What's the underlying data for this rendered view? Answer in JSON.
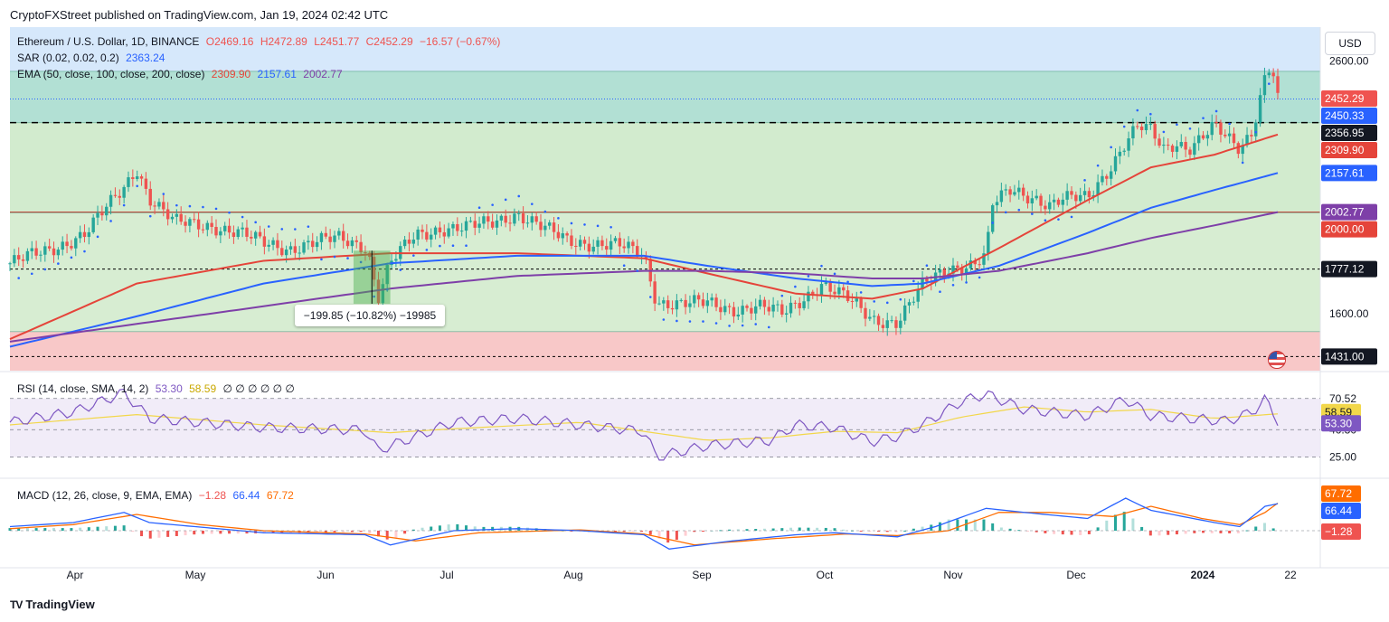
{
  "header": {
    "publisher": "CryptoFXStreet published on TradingView.com, Jan 19, 2024 02:42 UTC"
  },
  "legend": {
    "symbol": "Ethereum / U.S. Dollar, 1D, BINANCE",
    "o": "O2469.16",
    "h": "H2472.89",
    "l": "L2451.77",
    "c": "C2452.29",
    "change": "−16.57 (−0.67%)",
    "sar_label": "SAR (0.02, 0.02, 0.2)",
    "sar_value": "2363.24",
    "ema_label": "EMA (50, close, 100, close, 200, close)",
    "ema50": "2309.90",
    "ema100": "2157.61",
    "ema200": "2002.77",
    "rsi_label": "RSI (14, close, SMA, 14, 2)",
    "rsi_value": "53.30",
    "rsi_sma": "58.59",
    "rsi_extras": "∅ ∅ ∅ ∅ ∅ ∅",
    "macd_label": "MACD (12, 26, close, 9, EMA, EMA)",
    "macd_hist": "−1.28",
    "macd_line": "66.44",
    "macd_signal": "67.72"
  },
  "currency": "USD",
  "measure_label": "−199.85 (−10.82%) −19985",
  "branding": "TradingView",
  "colors": {
    "up": "#26a69a",
    "down": "#ef5350",
    "ema50": "#e5443a",
    "ema100": "#2962ff",
    "ema200": "#7e3fa8",
    "sar": "#2962ff",
    "rsi": "#7e57c2",
    "rsi_sma": "#f2d74a",
    "macd": "#2962ff",
    "signal": "#ff6d00"
  },
  "chart_data": {
    "type": "candlestick",
    "title": "Ethereum / U.S. Dollar, 1D, BINANCE",
    "price_axis": {
      "ticks": [
        1600.0,
        2000.0,
        2600.0
      ],
      "range": [
        1375,
        2735
      ]
    },
    "time_axis": [
      "Apr",
      "May",
      "Jun",
      "Jul",
      "Aug",
      "Sep",
      "Oct",
      "Nov",
      "Dec",
      "2024",
      "22"
    ],
    "zones": [
      {
        "from": 2356.95,
        "to": 2560,
        "color": "#b2e0d4"
      },
      {
        "from": 2000.0,
        "to": 2356.95,
        "color": "#d2ebce"
      },
      {
        "from": 1530,
        "to": 2000.0,
        "color": "#d7edd2"
      },
      {
        "from": 1375,
        "to": 1530,
        "color": "#f8c8c8"
      }
    ],
    "horizontal_levels": [
      2450.33,
      2356.95,
      2002.77,
      2000.0,
      1777.12,
      1431.0
    ],
    "price_labels": [
      {
        "value": 2452.29,
        "text": "2452.29",
        "bg": "#ef5350"
      },
      {
        "value": 2450.33,
        "text": "2450.33",
        "bg": "#2962ff"
      },
      {
        "value": 2356.95,
        "text": "2356.95",
        "bg": "#131722"
      },
      {
        "value": 2309.9,
        "text": "2309.90",
        "bg": "#e5443a"
      },
      {
        "value": 2157.61,
        "text": "2157.61",
        "bg": "#2962ff"
      },
      {
        "value": 2002.77,
        "text": "2002.77",
        "bg": "#7e3fa8"
      },
      {
        "value": 2000.0,
        "text": "2000.00",
        "bg": "#e5443a"
      },
      {
        "value": 1777.12,
        "text": "1777.12",
        "bg": "#131722"
      },
      {
        "value": 1431.0,
        "text": "1431.00",
        "bg": "#131722"
      }
    ],
    "ema_series": [
      {
        "name": "EMA 50",
        "points": [
          [
            0,
            1500
          ],
          [
            0.1,
            1720
          ],
          [
            0.2,
            1810
          ],
          [
            0.3,
            1840
          ],
          [
            0.4,
            1840
          ],
          [
            0.5,
            1820
          ],
          [
            0.55,
            1760
          ],
          [
            0.62,
            1680
          ],
          [
            0.68,
            1660
          ],
          [
            0.72,
            1700
          ],
          [
            0.78,
            1860
          ],
          [
            0.85,
            2050
          ],
          [
            0.9,
            2180
          ],
          [
            0.95,
            2230
          ],
          [
            1,
            2309.9
          ]
        ]
      },
      {
        "name": "EMA 100",
        "points": [
          [
            0,
            1470
          ],
          [
            0.1,
            1590
          ],
          [
            0.2,
            1720
          ],
          [
            0.3,
            1800
          ],
          [
            0.4,
            1830
          ],
          [
            0.5,
            1830
          ],
          [
            0.55,
            1790
          ],
          [
            0.62,
            1740
          ],
          [
            0.68,
            1710
          ],
          [
            0.72,
            1720
          ],
          [
            0.78,
            1790
          ],
          [
            0.85,
            1920
          ],
          [
            0.9,
            2020
          ],
          [
            0.95,
            2090
          ],
          [
            1,
            2157.61
          ]
        ]
      },
      {
        "name": "EMA 200",
        "points": [
          [
            0,
            1490
          ],
          [
            0.1,
            1560
          ],
          [
            0.2,
            1630
          ],
          [
            0.3,
            1700
          ],
          [
            0.4,
            1750
          ],
          [
            0.5,
            1770
          ],
          [
            0.55,
            1770
          ],
          [
            0.62,
            1760
          ],
          [
            0.68,
            1740
          ],
          [
            0.72,
            1740
          ],
          [
            0.78,
            1770
          ],
          [
            0.85,
            1840
          ],
          [
            0.9,
            1900
          ],
          [
            0.95,
            1950
          ],
          [
            1,
            2002.77
          ]
        ]
      }
    ],
    "close_path": [
      [
        0,
        1800
      ],
      [
        0.03,
        1850
      ],
      [
        0.06,
        1920
      ],
      [
        0.09,
        2100
      ],
      [
        0.1,
        2180
      ],
      [
        0.11,
        2060
      ],
      [
        0.13,
        1960
      ],
      [
        0.16,
        1950
      ],
      [
        0.18,
        1920
      ],
      [
        0.2,
        1880
      ],
      [
        0.22,
        1860
      ],
      [
        0.24,
        1880
      ],
      [
        0.26,
        1900
      ],
      [
        0.28,
        1870
      ],
      [
        0.285,
        1800
      ],
      [
        0.29,
        1660
      ],
      [
        0.3,
        1800
      ],
      [
        0.32,
        1910
      ],
      [
        0.34,
        1940
      ],
      [
        0.36,
        1940
      ],
      [
        0.38,
        1960
      ],
      [
        0.4,
        2000
      ],
      [
        0.42,
        1940
      ],
      [
        0.44,
        1890
      ],
      [
        0.46,
        1880
      ],
      [
        0.48,
        1870
      ],
      [
        0.5,
        1830
      ],
      [
        0.51,
        1650
      ],
      [
        0.53,
        1640
      ],
      [
        0.55,
        1640
      ],
      [
        0.57,
        1620
      ],
      [
        0.59,
        1630
      ],
      [
        0.61,
        1600
      ],
      [
        0.62,
        1640
      ],
      [
        0.64,
        1720
      ],
      [
        0.66,
        1660
      ],
      [
        0.68,
        1580
      ],
      [
        0.7,
        1570
      ],
      [
        0.72,
        1710
      ],
      [
        0.74,
        1780
      ],
      [
        0.76,
        1800
      ],
      [
        0.77,
        1830
      ],
      [
        0.775,
        2030
      ],
      [
        0.79,
        2090
      ],
      [
        0.81,
        2060
      ],
      [
        0.82,
        2030
      ],
      [
        0.83,
        2050
      ],
      [
        0.85,
        2060
      ],
      [
        0.86,
        2130
      ],
      [
        0.87,
        2200
      ],
      [
        0.88,
        2280
      ],
      [
        0.89,
        2340
      ],
      [
        0.9,
        2320
      ],
      [
        0.91,
        2250
      ],
      [
        0.92,
        2280
      ],
      [
        0.93,
        2260
      ],
      [
        0.95,
        2340
      ],
      [
        0.96,
        2290
      ],
      [
        0.97,
        2250
      ],
      [
        0.98,
        2330
      ],
      [
        0.99,
        2550
      ],
      [
        0.995,
        2600
      ],
      [
        1,
        2452.29
      ]
    ],
    "rsi": {
      "levels": [
        70.52,
        46.3,
        25.0
      ],
      "last": 53.3,
      "sma_last": 58.59,
      "points": [
        [
          0,
          52
        ],
        [
          0.05,
          60
        ],
        [
          0.09,
          75
        ],
        [
          0.11,
          55
        ],
        [
          0.2,
          48
        ],
        [
          0.28,
          46
        ],
        [
          0.29,
          30
        ],
        [
          0.35,
          52
        ],
        [
          0.4,
          55
        ],
        [
          0.45,
          50
        ],
        [
          0.5,
          45
        ],
        [
          0.51,
          25
        ],
        [
          0.55,
          34
        ],
        [
          0.6,
          38
        ],
        [
          0.62,
          50
        ],
        [
          0.65,
          48
        ],
        [
          0.68,
          37
        ],
        [
          0.7,
          41
        ],
        [
          0.72,
          50
        ],
        [
          0.75,
          68
        ],
        [
          0.77,
          74
        ],
        [
          0.8,
          62
        ],
        [
          0.85,
          57
        ],
        [
          0.88,
          70
        ],
        [
          0.9,
          57
        ],
        [
          0.93,
          55
        ],
        [
          0.96,
          53
        ],
        [
          0.98,
          60
        ],
        [
          0.99,
          70
        ],
        [
          1,
          53.3
        ]
      ],
      "sma": [
        [
          0,
          50
        ],
        [
          0.1,
          58
        ],
        [
          0.2,
          50
        ],
        [
          0.3,
          44
        ],
        [
          0.35,
          47
        ],
        [
          0.45,
          52
        ],
        [
          0.55,
          38
        ],
        [
          0.6,
          40
        ],
        [
          0.65,
          45
        ],
        [
          0.7,
          44
        ],
        [
          0.75,
          56
        ],
        [
          0.8,
          64
        ],
        [
          0.85,
          60
        ],
        [
          0.9,
          62
        ],
        [
          0.95,
          55
        ],
        [
          1,
          58.59
        ]
      ]
    },
    "macd": {
      "labels": [
        67.72,
        66.44,
        -1.28
      ],
      "line": [
        [
          0,
          10
        ],
        [
          0.05,
          20
        ],
        [
          0.09,
          45
        ],
        [
          0.11,
          20
        ],
        [
          0.2,
          -5
        ],
        [
          0.28,
          -10
        ],
        [
          0.3,
          -35
        ],
        [
          0.35,
          0
        ],
        [
          0.4,
          5
        ],
        [
          0.45,
          0
        ],
        [
          0.5,
          -10
        ],
        [
          0.52,
          -45
        ],
        [
          0.57,
          -25
        ],
        [
          0.62,
          -10
        ],
        [
          0.65,
          -5
        ],
        [
          0.7,
          -15
        ],
        [
          0.73,
          10
        ],
        [
          0.77,
          55
        ],
        [
          0.8,
          45
        ],
        [
          0.85,
          30
        ],
        [
          0.88,
          80
        ],
        [
          0.9,
          50
        ],
        [
          0.95,
          20
        ],
        [
          0.97,
          10
        ],
        [
          0.99,
          60
        ],
        [
          1,
          66.44
        ]
      ],
      "signal": [
        [
          0,
          5
        ],
        [
          0.05,
          15
        ],
        [
          0.1,
          40
        ],
        [
          0.15,
          15
        ],
        [
          0.2,
          0
        ],
        [
          0.28,
          -8
        ],
        [
          0.32,
          -25
        ],
        [
          0.37,
          -5
        ],
        [
          0.45,
          2
        ],
        [
          0.5,
          -8
        ],
        [
          0.54,
          -35
        ],
        [
          0.6,
          -20
        ],
        [
          0.66,
          -8
        ],
        [
          0.7,
          -12
        ],
        [
          0.74,
          0
        ],
        [
          0.78,
          45
        ],
        [
          0.82,
          45
        ],
        [
          0.87,
          35
        ],
        [
          0.9,
          60
        ],
        [
          0.94,
          30
        ],
        [
          0.97,
          15
        ],
        [
          0.99,
          45
        ],
        [
          1,
          67.72
        ]
      ]
    }
  }
}
